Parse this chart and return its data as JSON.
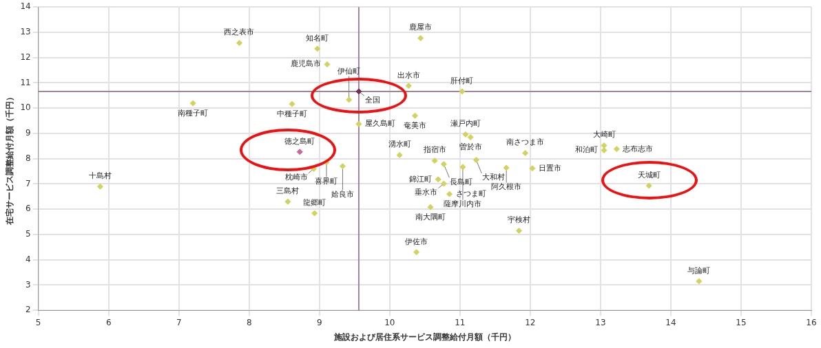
{
  "chart_data": {
    "type": "scatter",
    "xlabel": "施設および居住系サービス調整給付月額（千円）",
    "ylabel": "在宅サービス調整給付月額（千円）",
    "xlim": [
      5,
      16
    ],
    "xticks": [
      5,
      6,
      7,
      8,
      9,
      10,
      11,
      12,
      13,
      14,
      15,
      16
    ],
    "ylim": [
      2,
      14
    ],
    "yticks": [
      2,
      3,
      4,
      5,
      6,
      7,
      8,
      9,
      10,
      11,
      12,
      13,
      14
    ],
    "grid": true,
    "legend": false,
    "marker": "diamond",
    "series": [
      {
        "color": "#d2d35c",
        "x": [
          7.86,
          8.97,
          9.11,
          10.44,
          10.27,
          11.03,
          7.2,
          8.61,
          9.42,
          9.56,
          10.36,
          11.08,
          11.15,
          9.1,
          8.92,
          9.33,
          5.88,
          8.55,
          8.93,
          10.14,
          10.64,
          10.77,
          11.23,
          11.04,
          10.69,
          10.77,
          10.85,
          10.58,
          10.38,
          11.84,
          11.93,
          11.66,
          12.03,
          13.05,
          13.05,
          13.23,
          13.69,
          14.4
        ],
        "values": [
          12.58,
          12.35,
          11.73,
          12.77,
          10.88,
          10.66,
          10.19,
          10.16,
          10.33,
          9.37,
          9.7,
          8.96,
          8.85,
          7.86,
          7.6,
          7.7,
          6.9,
          6.3,
          5.84,
          8.14,
          7.92,
          7.78,
          7.95,
          7.67,
          7.18,
          7.01,
          6.6,
          6.08,
          4.3,
          5.15,
          8.22,
          7.64,
          7.62,
          8.52,
          8.33,
          8.38,
          6.93,
          3.15
        ]
      },
      {
        "color": "#d6609a",
        "x": [
          8.72
        ],
        "values": [
          8.27
        ]
      },
      {
        "color": "#7a2e55",
        "x": [
          9.56
        ],
        "values": [
          10.66
        ]
      }
    ],
    "ref_lines": [
      {
        "axis": "x",
        "value": 9.56,
        "color": "#a0849a"
      },
      {
        "axis": "y",
        "value": 10.66,
        "color": "#a0849a"
      }
    ],
    "annotations": [
      {
        "text": "西之表市",
        "x": 7.86,
        "y": 12.58
      },
      {
        "text": "知名町",
        "x": 8.97,
        "y": 12.35
      },
      {
        "text": "鹿児島市",
        "x": 9.11,
        "y": 11.73
      },
      {
        "text": "鹿屋市",
        "x": 10.44,
        "y": 12.77
      },
      {
        "text": "出水市",
        "x": 10.27,
        "y": 10.88
      },
      {
        "text": "肝付町",
        "x": 11.03,
        "y": 10.66
      },
      {
        "text": "南種子町",
        "x": 7.2,
        "y": 10.19
      },
      {
        "text": "中種子町",
        "x": 8.61,
        "y": 10.16
      },
      {
        "text": "伊仙町",
        "x": 9.42,
        "y": 10.33
      },
      {
        "text": "全国",
        "x": 9.56,
        "y": 10.66
      },
      {
        "text": "屋久島町",
        "x": 9.56,
        "y": 9.37
      },
      {
        "text": "奄美市",
        "x": 10.36,
        "y": 9.7
      },
      {
        "text": "瀬戸内町",
        "x": 11.08,
        "y": 8.96
      },
      {
        "text": "曽於市",
        "x": 11.15,
        "y": 8.85
      },
      {
        "text": "徳之島町",
        "x": 8.72,
        "y": 8.27
      },
      {
        "text": "喜界町",
        "x": 9.1,
        "y": 7.86
      },
      {
        "text": "枕崎市",
        "x": 8.92,
        "y": 7.6
      },
      {
        "text": "姶良市",
        "x": 9.33,
        "y": 7.7
      },
      {
        "text": "十島村",
        "x": 5.88,
        "y": 6.9
      },
      {
        "text": "三島村",
        "x": 8.55,
        "y": 6.3
      },
      {
        "text": "龍郷町",
        "x": 8.93,
        "y": 5.84
      },
      {
        "text": "湧水町",
        "x": 10.14,
        "y": 8.14
      },
      {
        "text": "指宿市",
        "x": 10.64,
        "y": 7.92
      },
      {
        "text": "長島町",
        "x": 10.77,
        "y": 7.78
      },
      {
        "text": "大和村",
        "x": 11.23,
        "y": 7.95
      },
      {
        "text": "薩摩川内市",
        "x": 11.04,
        "y": 7.67
      },
      {
        "text": "錦江町",
        "x": 10.69,
        "y": 7.18
      },
      {
        "text": "垂水市",
        "x": 10.77,
        "y": 7.01
      },
      {
        "text": "さつま町",
        "x": 10.85,
        "y": 6.6
      },
      {
        "text": "南大隅町",
        "x": 10.58,
        "y": 6.08
      },
      {
        "text": "伊佐市",
        "x": 10.38,
        "y": 4.3
      },
      {
        "text": "宇検村",
        "x": 11.84,
        "y": 5.15
      },
      {
        "text": "南さつま市",
        "x": 11.93,
        "y": 8.22
      },
      {
        "text": "阿久根市",
        "x": 11.66,
        "y": 7.64
      },
      {
        "text": "日置市",
        "x": 12.03,
        "y": 7.62
      },
      {
        "text": "大崎町",
        "x": 13.05,
        "y": 8.52
      },
      {
        "text": "和泊町",
        "x": 13.05,
        "y": 8.33
      },
      {
        "text": "志布志市",
        "x": 13.23,
        "y": 8.38
      },
      {
        "text": "天城町",
        "x": 13.69,
        "y": 6.93
      },
      {
        "text": "与論町",
        "x": 14.4,
        "y": 3.15
      }
    ]
  }
}
